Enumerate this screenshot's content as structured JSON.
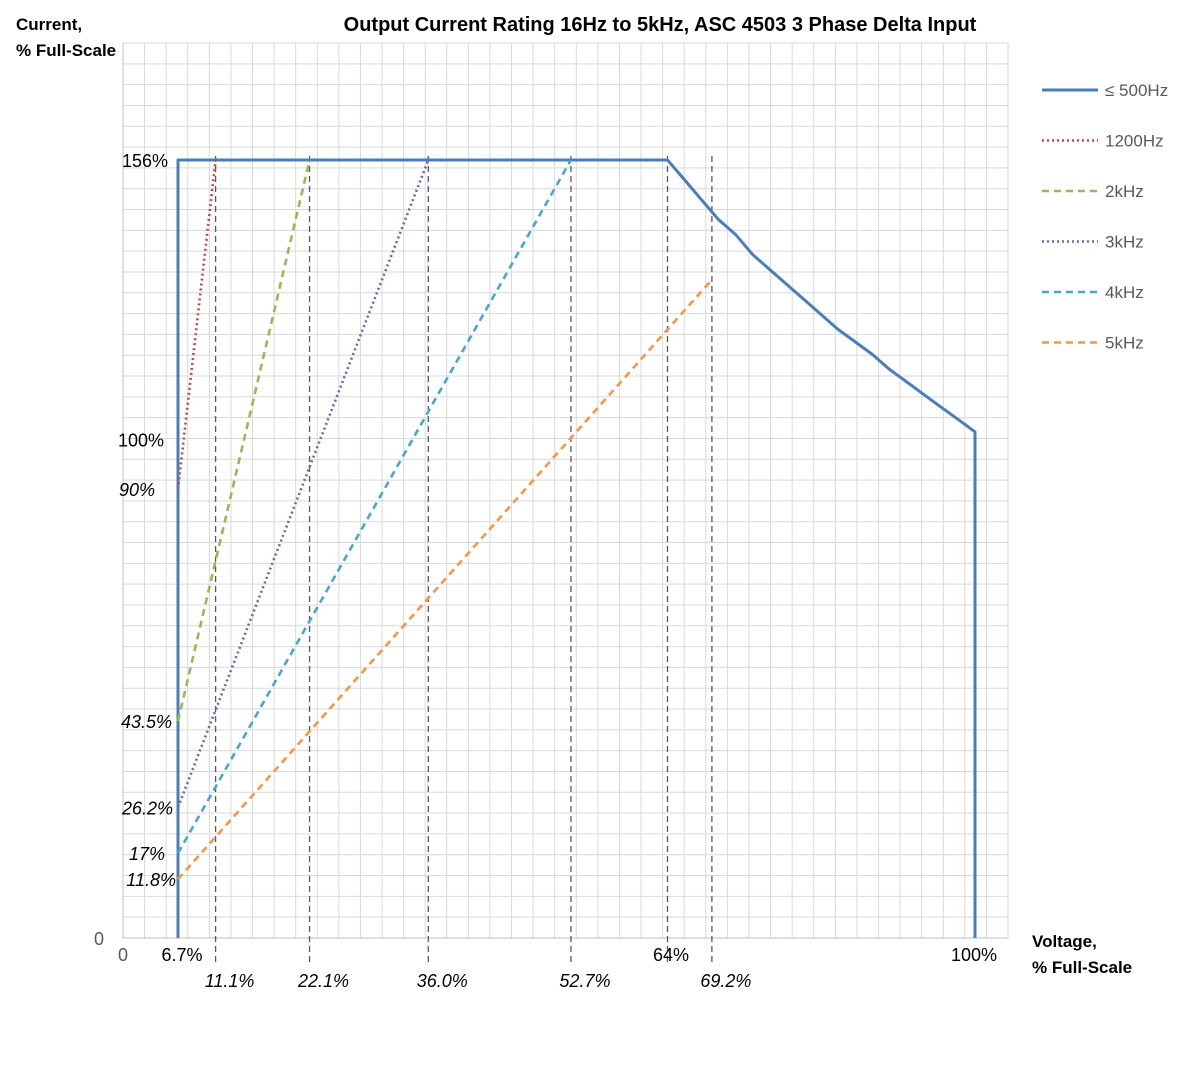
{
  "chart_data": {
    "type": "line",
    "title": "Output Current Rating 16Hz to 5kHz, ASC 4503 3 Phase Delta Input",
    "ylabel": [
      "Current,",
      "% Full-Scale"
    ],
    "xlabel": [
      "Voltage,",
      "% Full-Scale"
    ],
    "xlim": [
      0,
      100
    ],
    "ylim": [
      0,
      180
    ],
    "grid": true,
    "legend_position": "right",
    "y_tick_labels": [
      {
        "value": 156,
        "text": "156%",
        "italic": false
      },
      {
        "value": 100,
        "text": "100%",
        "italic": false
      },
      {
        "value": 90,
        "text": "90%",
        "italic": true
      },
      {
        "value": 43.5,
        "text": "43.5%",
        "italic": true
      },
      {
        "value": 26.2,
        "text": "26.2%",
        "italic": true
      },
      {
        "value": 17,
        "text": "17%",
        "italic": true
      },
      {
        "value": 11.8,
        "text": "11.8%",
        "italic": true
      },
      {
        "value": 0,
        "text": "0",
        "italic": false
      }
    ],
    "x_tick_labels_upper": [
      {
        "value": 0,
        "text": "0"
      },
      {
        "value": 6.7,
        "text": "6.7%"
      },
      {
        "value": 64,
        "text": "64%"
      },
      {
        "value": 100,
        "text": "100%"
      }
    ],
    "x_tick_labels_lower": [
      {
        "value": 11.1,
        "text": "11.1%"
      },
      {
        "value": 22.1,
        "text": "22.1%"
      },
      {
        "value": 36.0,
        "text": "36.0%"
      },
      {
        "value": 52.7,
        "text": "52.7%"
      },
      {
        "value": 69.2,
        "text": "69.2%"
      }
    ],
    "reference_lines_x": [
      11.1,
      22.1,
      36.0,
      52.7,
      64,
      69.2
    ],
    "series": [
      {
        "name": "≤ 500Hz",
        "color": "#4a7ebb",
        "dash": "solid",
        "x": [
          6.7,
          6.7,
          64,
          66,
          68,
          70,
          72,
          74,
          76,
          78,
          80,
          82,
          84,
          86,
          88,
          90,
          92,
          94,
          96,
          98,
          100,
          100
        ],
        "y": [
          0,
          156,
          156,
          152,
          148,
          144,
          141,
          137,
          134,
          131,
          128,
          125,
          122,
          119.5,
          117,
          114,
          111.5,
          109,
          106.5,
          104,
          101.5,
          0
        ]
      },
      {
        "name": "1200Hz",
        "color": "#be4b48",
        "dash": "dot",
        "x": [
          6.7,
          11.1
        ],
        "y": [
          90,
          156
        ]
      },
      {
        "name": "2kHz",
        "color": "#98b954",
        "dash": "dash",
        "x": [
          6.7,
          22.1
        ],
        "y": [
          43.5,
          156
        ]
      },
      {
        "name": "3kHz",
        "color": "#7d60a0",
        "dash": "dot",
        "x": [
          6.7,
          36.0
        ],
        "y": [
          26.2,
          156
        ]
      },
      {
        "name": "4kHz",
        "color": "#46aac5",
        "dash": "dash",
        "x": [
          6.7,
          52.7
        ],
        "y": [
          17,
          156
        ]
      },
      {
        "name": "5kHz",
        "color": "#f69647",
        "dash": "dash",
        "x": [
          6.7,
          69.2
        ],
        "y": [
          11.8,
          132
        ]
      }
    ]
  }
}
